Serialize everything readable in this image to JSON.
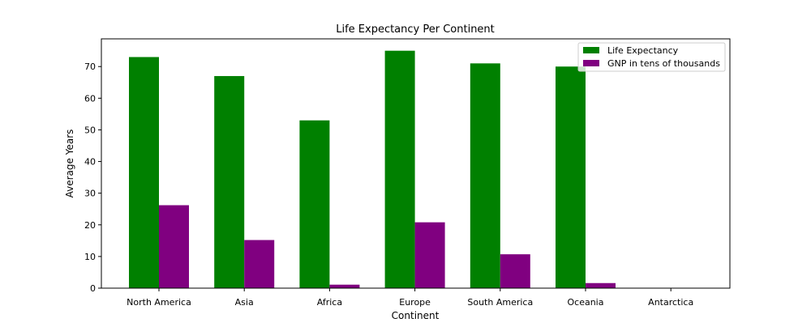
{
  "chart_data": {
    "type": "bar",
    "title": "Life Expectancy Per Continent",
    "xlabel": "Continent",
    "ylabel": "Average Years",
    "categories": [
      "North America",
      "Asia",
      "Africa",
      "Europe",
      "South America",
      "Oceania",
      "Antarctica"
    ],
    "series": [
      {
        "name": "Life Expectancy",
        "color": "#008000",
        "values": [
          73,
          67,
          53,
          75,
          71,
          70,
          0
        ]
      },
      {
        "name": "GNP in tens of thousands",
        "color": "#800080",
        "values": [
          26.2,
          15.2,
          1.1,
          20.8,
          10.7,
          1.6,
          0
        ]
      }
    ],
    "yticks": [
      0,
      10,
      20,
      30,
      40,
      50,
      60,
      70
    ],
    "ylim": [
      0,
      78.75
    ],
    "grid": false,
    "legend_position": "top-right"
  }
}
